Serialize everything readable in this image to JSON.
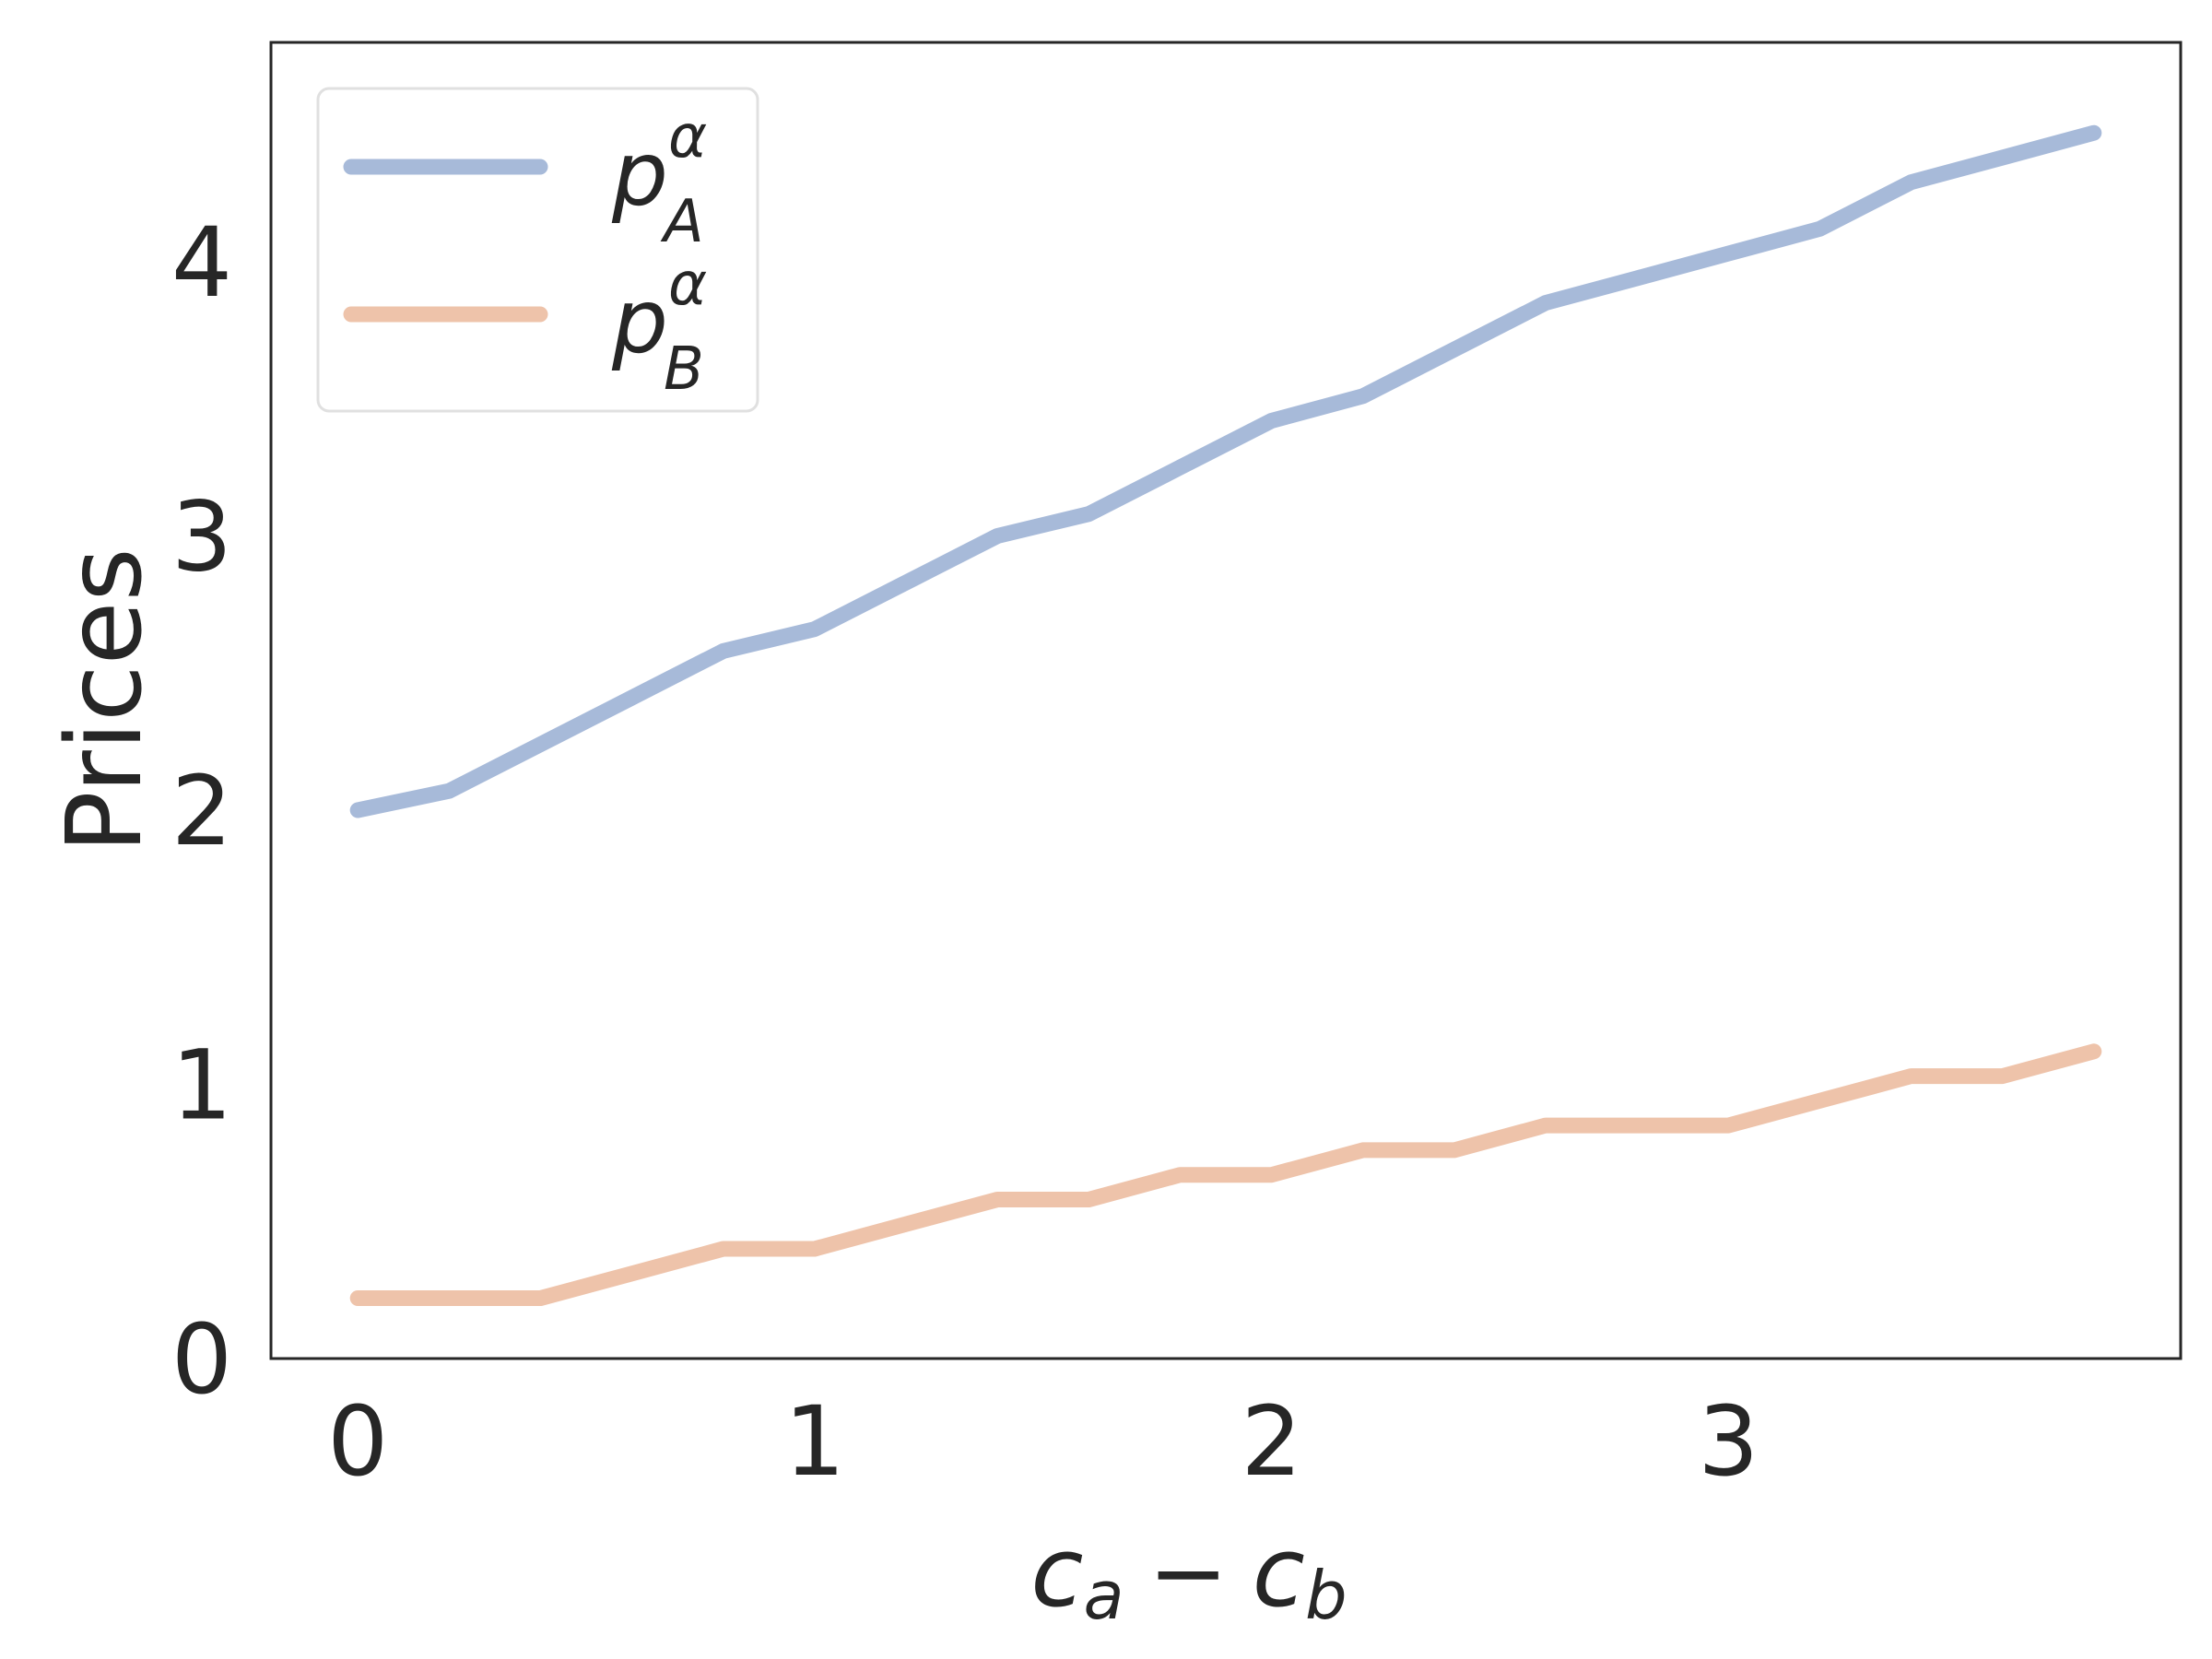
{
  "chart_data": {
    "type": "line",
    "title": "",
    "ylabel": "Prices",
    "xlabel": {
      "var1": "c",
      "sub1": "a",
      "op": "−",
      "var2": "c",
      "sub2": "b"
    },
    "x": [
      0.0,
      0.2,
      0.4,
      0.6,
      0.8,
      1.0,
      1.2,
      1.4,
      1.6,
      1.8,
      2.0,
      2.2,
      2.4,
      2.6,
      2.8,
      3.0,
      3.2,
      3.4,
      3.6,
      3.8
    ],
    "series": [
      {
        "name": {
          "base": "p",
          "sup": "α",
          "sub": "A"
        },
        "color": "#a7bad9",
        "values": [
          2.0,
          2.07,
          2.24,
          2.41,
          2.58,
          2.66,
          2.83,
          3.0,
          3.08,
          3.25,
          3.42,
          3.51,
          3.68,
          3.85,
          3.94,
          4.03,
          4.12,
          4.29,
          4.38,
          4.47
        ]
      },
      {
        "name": {
          "base": "p",
          "sup": "α",
          "sub": "B"
        },
        "color": "#eec3aa",
        "values": [
          0.22,
          0.22,
          0.22,
          0.31,
          0.4,
          0.4,
          0.49,
          0.58,
          0.58,
          0.67,
          0.67,
          0.76,
          0.76,
          0.85,
          0.85,
          0.85,
          0.94,
          1.03,
          1.03,
          1.12
        ]
      }
    ],
    "xlim": [
      -0.19,
      3.99
    ],
    "ylim": [
      0,
      4.8
    ],
    "xticks": [
      "0",
      "1",
      "2",
      "3"
    ],
    "yticks": [
      "0",
      "1",
      "2",
      "3",
      "4"
    ],
    "grid": false,
    "legend_position": "top-left"
  }
}
